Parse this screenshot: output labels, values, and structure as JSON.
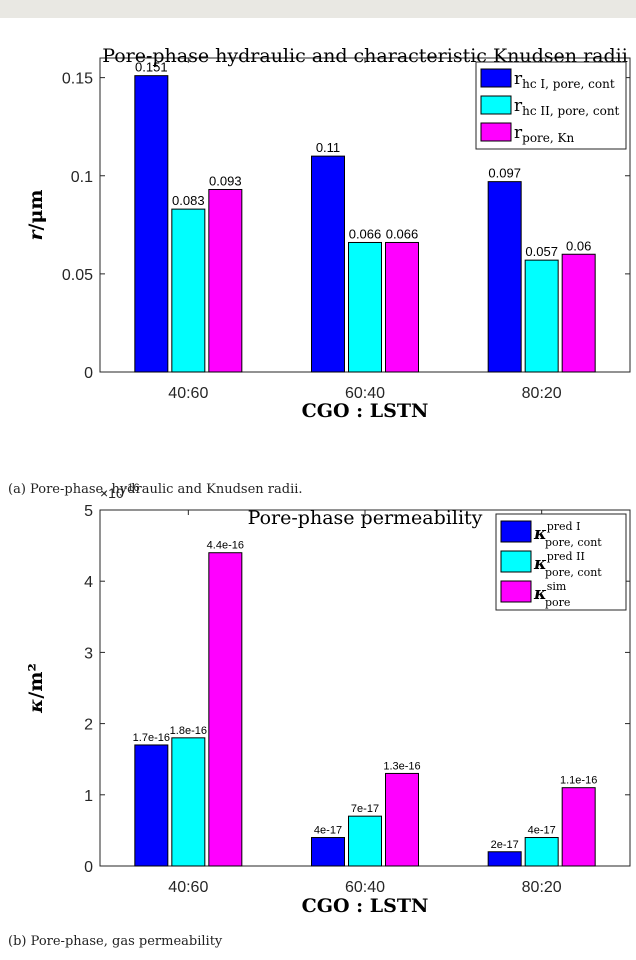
{
  "chart_data": [
    {
      "type": "bar",
      "title": "Pore-phase hydraulic and characteristic Knudsen radii",
      "xlabel": "CGO : LSTN",
      "ylabel_main": "r",
      "ylabel_unit": "/μm",
      "categories": [
        "40:60",
        "60:40",
        "80:20"
      ],
      "ylim": [
        0,
        0.16
      ],
      "yticks": [
        {
          "v": 0,
          "label": "0"
        },
        {
          "v": 0.05,
          "label": "0.05"
        },
        {
          "v": 0.1,
          "label": "0.1"
        },
        {
          "v": 0.15,
          "label": "0.15"
        }
      ],
      "grid": false,
      "legend_position": "top-right",
      "series": [
        {
          "name_main": "r",
          "name_sub": "hc I, pore, cont",
          "name_sup": "",
          "color": "#0000ff",
          "values": [
            0.151,
            0.11,
            0.097
          ],
          "labels": [
            "0.151",
            "0.11",
            "0.097"
          ]
        },
        {
          "name_main": "r",
          "name_sub": "hc II, pore, cont",
          "name_sup": "",
          "color": "#00ffff",
          "values": [
            0.083,
            0.066,
            0.057
          ],
          "labels": [
            "0.083",
            "0.066",
            "0.057"
          ]
        },
        {
          "name_main": "r",
          "name_sub": "pore, Kn",
          "name_sup": "",
          "color": "#ff00ff",
          "values": [
            0.093,
            0.066,
            0.06
          ],
          "labels": [
            "0.093",
            "0.066",
            "0.06"
          ]
        }
      ],
      "caption": "(a) Pore-phase, hydraulic and Knudsen radii."
    },
    {
      "type": "bar",
      "title": "Pore-phase permeability",
      "xlabel": "CGO : LSTN",
      "ylabel_main": "κ",
      "ylabel_unit": "/m²",
      "categories": [
        "40:60",
        "60:40",
        "80:20"
      ],
      "ylim": [
        0,
        5
      ],
      "scale_prefix": "×10",
      "scale_exp": "-16",
      "yticks": [
        {
          "v": 0,
          "label": "0"
        },
        {
          "v": 1,
          "label": "1"
        },
        {
          "v": 2,
          "label": "2"
        },
        {
          "v": 3,
          "label": "3"
        },
        {
          "v": 4,
          "label": "4"
        },
        {
          "v": 5,
          "label": "5"
        }
      ],
      "grid": false,
      "legend_position": "top-right",
      "series": [
        {
          "name_main": "κ",
          "name_sub": "pore, cont",
          "name_sup": "pred I",
          "color": "#0000ff",
          "values": [
            1.7,
            0.4,
            0.2
          ],
          "labels": [
            "1.7e-16",
            "4e-17",
            "2e-17"
          ]
        },
        {
          "name_main": "κ",
          "name_sub": "pore, cont",
          "name_sup": "pred II",
          "color": "#00ffff",
          "values": [
            1.8,
            0.7,
            0.4
          ],
          "labels": [
            "1.8e-16",
            "7e-17",
            "4e-17"
          ]
        },
        {
          "name_main": "κ",
          "name_sub": "pore",
          "name_sup": "sim",
          "color": "#ff00ff",
          "values": [
            4.4,
            1.3,
            1.1
          ],
          "labels": [
            "4.4e-16",
            "1.3e-16",
            "1.1e-16"
          ]
        }
      ],
      "caption": "(b) Pore-phase, gas permeability"
    }
  ]
}
